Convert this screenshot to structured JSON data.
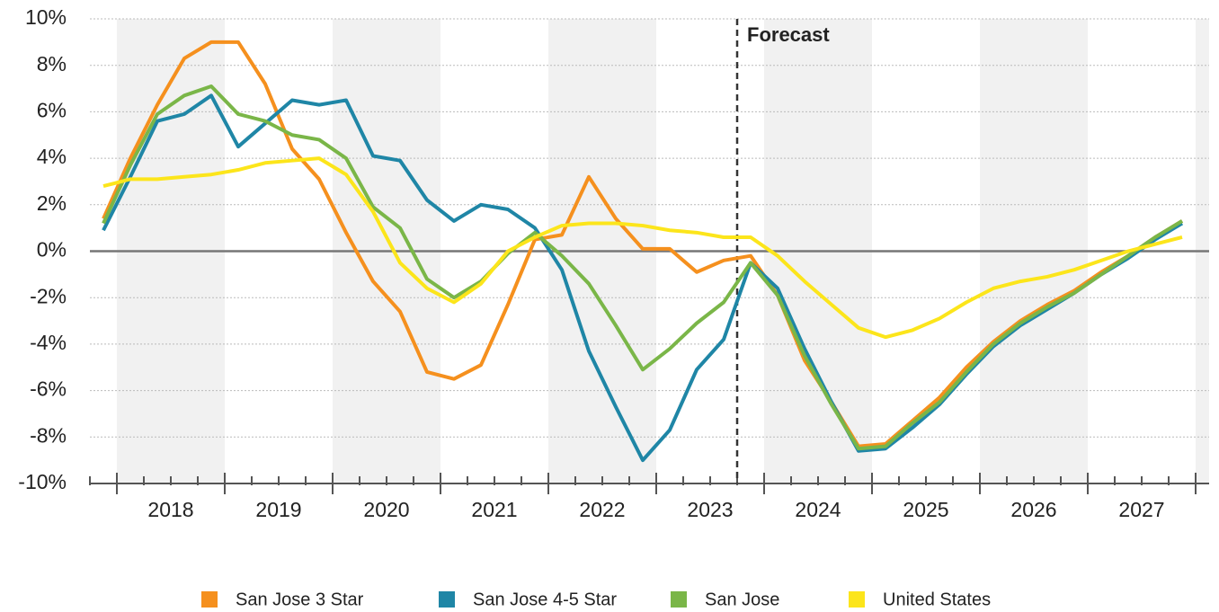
{
  "chart_data": {
    "type": "line",
    "categories": [
      null,
      null,
      null,
      null,
      null,
      null,
      null,
      null,
      null,
      null,
      null,
      null,
      null,
      null,
      null,
      null,
      null,
      null,
      null,
      null,
      null,
      null,
      null,
      null,
      null,
      null,
      null,
      null,
      null,
      null,
      null,
      null,
      null,
      null,
      null,
      null,
      null,
      null,
      null,
      null,
      null
    ],
    "year_labels": [
      "2018",
      "2019",
      "2020",
      "2021",
      "2022",
      "2023",
      "2024",
      "2025",
      "2026",
      "2027"
    ],
    "annotation": "Forecast",
    "ylim": [
      -10,
      10
    ],
    "yticks": [
      {
        "value": -10,
        "label": "-10%"
      },
      {
        "value": -8,
        "label": "-8%"
      },
      {
        "value": -6,
        "label": "-6%"
      },
      {
        "value": -4,
        "label": "-4%"
      },
      {
        "value": -2,
        "label": "-2%"
      },
      {
        "value": 0,
        "label": "0%"
      },
      {
        "value": 2,
        "label": "2%"
      },
      {
        "value": 4,
        "label": "4%"
      },
      {
        "value": 6,
        "label": "6%"
      },
      {
        "value": 8,
        "label": "8%"
      },
      {
        "value": 10,
        "label": "10%"
      }
    ],
    "grid": true,
    "series": [
      {
        "name": "San Jose 3 Star",
        "color": "#f5901e",
        "values": [
          1.4,
          4.0,
          6.3,
          8.3,
          9.0,
          9.0,
          7.2,
          4.4,
          3.1,
          0.8,
          -1.3,
          -2.6,
          -5.2,
          -5.5,
          -4.9,
          -2.3,
          0.5,
          0.7,
          3.2,
          1.4,
          0.1,
          0.1,
          -0.9,
          -0.4,
          -0.2,
          -1.9,
          -4.7,
          -6.5,
          -8.4,
          -8.3,
          -7.3,
          -6.3,
          -5.0,
          -3.9,
          -3.0,
          -2.3,
          -1.7,
          -0.9,
          -0.2,
          0.6,
          1.3
        ]
      },
      {
        "name": "San Jose 4-5 Star",
        "color": "#1f86a6",
        "values": [
          0.9,
          3.2,
          5.6,
          5.9,
          6.7,
          4.5,
          5.5,
          6.5,
          6.3,
          6.5,
          4.1,
          3.9,
          2.2,
          1.3,
          2.0,
          1.8,
          1.0,
          -0.8,
          -4.3,
          -6.7,
          -9.0,
          -7.7,
          -5.1,
          -3.8,
          -0.5,
          -1.6,
          -4.2,
          -6.5,
          -8.6,
          -8.5,
          -7.6,
          -6.6,
          -5.3,
          -4.1,
          -3.2,
          -2.5,
          -1.8,
          -1.0,
          -0.3,
          0.5,
          1.2
        ]
      },
      {
        "name": "San Jose",
        "color": "#7ab648",
        "values": [
          1.2,
          3.7,
          5.9,
          6.7,
          7.1,
          5.9,
          5.6,
          5.0,
          4.8,
          4.0,
          1.9,
          1.0,
          -1.2,
          -2.0,
          -1.3,
          -0.1,
          0.8,
          -0.2,
          -1.4,
          -3.2,
          -5.1,
          -4.2,
          -3.1,
          -2.2,
          -0.5,
          -1.9,
          -4.5,
          -6.6,
          -8.5,
          -8.4,
          -7.4,
          -6.5,
          -5.2,
          -4.0,
          -3.1,
          -2.4,
          -1.8,
          -1.0,
          -0.2,
          0.6,
          1.3
        ]
      },
      {
        "name": "United States",
        "color": "#fce51b",
        "values": [
          2.8,
          3.1,
          3.1,
          3.2,
          3.3,
          3.5,
          3.8,
          3.9,
          4.0,
          3.3,
          1.7,
          -0.5,
          -1.6,
          -2.2,
          -1.4,
          0.0,
          0.6,
          1.1,
          1.2,
          1.2,
          1.1,
          0.9,
          0.8,
          0.6,
          0.6,
          -0.2,
          -1.3,
          -2.3,
          -3.3,
          -3.7,
          -3.4,
          -2.9,
          -2.2,
          -1.6,
          -1.3,
          -1.1,
          -0.8,
          -0.4,
          0.0,
          0.3,
          0.6
        ]
      }
    ]
  }
}
